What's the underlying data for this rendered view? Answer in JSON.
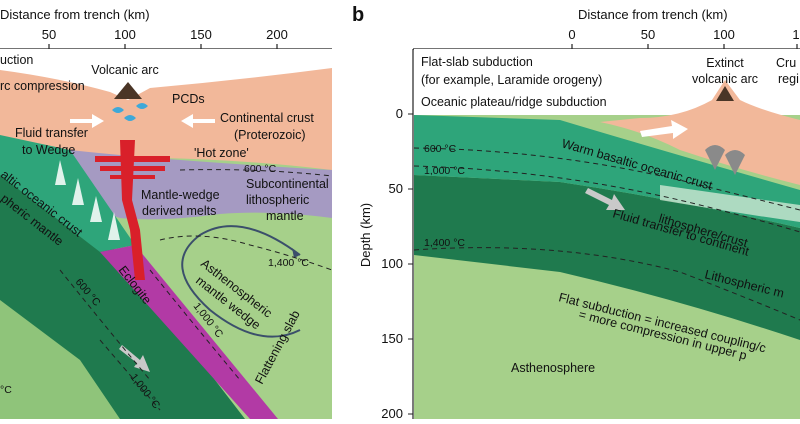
{
  "panel_a": {
    "top_axis_title": "Distance from trench (km)",
    "top_ticks": [
      "50",
      "100",
      "150",
      "200"
    ],
    "labels": {
      "subduction_partial": "uction",
      "compression_partial": "rc compression",
      "volcanic_arc": "Volcanic arc",
      "pcds": "PCDs",
      "continental_crust": "Continental crust",
      "proterozoic": "(Proterozoic)",
      "fluid_transfer_1": "Fluid transfer",
      "fluid_transfer_2": "to Wedge",
      "hot_zone": "'Hot zone'",
      "iso_600_top": "600 °C",
      "subcontinental_1": "Subcontinental",
      "subcontinental_2": "lithospheric",
      "subcontinental_3": "mantle",
      "mantle_wedge_melts_1": "Mantle-wedge",
      "mantle_wedge_melts_2": "derived melts",
      "oceanic_crust": "altic oceanic crust",
      "spheric_mantle": "pheric mantle",
      "asthenospheric_1": "Asthenospheric",
      "asthenospheric_2": "mantle wedge",
      "iso_1400": "1,400 °C",
      "eclogite": "Eclogite",
      "iso_600_slab": "600 °C",
      "iso_1000_wedge": "1,000 °C",
      "iso_1000_slab": "1,000 °C",
      "flattening_slab": "Flattening slab",
      "edge_c": "°C"
    }
  },
  "panel_b": {
    "letter": "b",
    "top_axis_title": "Distance from trench (km)",
    "top_ticks": [
      "0",
      "50",
      "100",
      "1"
    ],
    "left_axis_title": "Depth (km)",
    "left_ticks": [
      "0",
      "50",
      "100",
      "150",
      "200"
    ],
    "labels": {
      "flat_slab_1": "Flat-slab subduction",
      "flat_slab_2": "(for example, Laramide orogeny)",
      "plateau": "Oceanic plateau/ridge subduction",
      "extinct_1": "Extinct",
      "extinct_2": "volcanic arc",
      "cru": "Cru",
      "regi": "regi",
      "iso_600": "600 °C",
      "iso_1000": "1,000 °C",
      "iso_1400": "1,400 °C",
      "warm_basaltic": "Warm basaltic oceanic crust",
      "fluid_cont_1": "Fluid transfer to continent",
      "fluid_cont_2": "lithosphere/crust",
      "litho_mantle": "Lithospheric m",
      "flat_sub_1": "Flat subduction = increased coupling/c",
      "flat_sub_2": "= more compression in upper p",
      "asthenosphere": "Asthenosphere"
    }
  },
  "colors": {
    "continental_crust": "#f2b89a",
    "subcontinental_mantle": "#a59ac2",
    "asthenosphere_light": "#a6d08a",
    "slab_mantle_dark": "#1f7a4e",
    "oceanic_crust": "#2ea57a",
    "eclogite": "#b23aa5",
    "melt_red": "#d9202a",
    "pcd_blue": "#3ea8d8",
    "background_lower_green": "#8fc47a"
  }
}
